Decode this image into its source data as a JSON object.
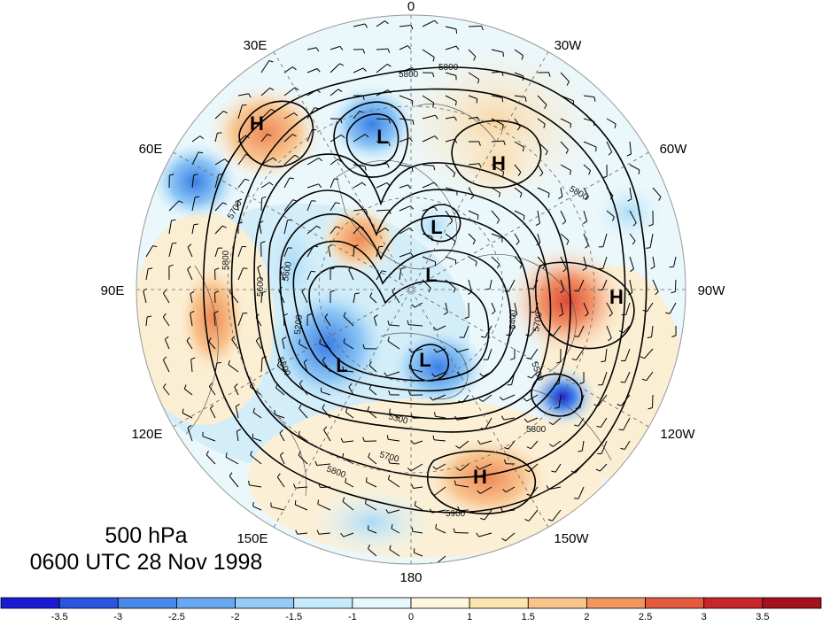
{
  "map": {
    "level": "500 hPa",
    "valid_time": "0600 UTC 28 Nov 1998",
    "longitude_labels": {
      "top": "0",
      "top_left": "30E",
      "top_right": "30W",
      "upper_left": "60E",
      "upper_right": "60W",
      "left": "90E",
      "right": "90W",
      "lower_left": "120E",
      "lower_right": "120W",
      "bottom_left": "150E",
      "bottom_right": "150W",
      "bottom": "180"
    },
    "contour_labels": [
      "5800",
      "5800",
      "5800",
      "5700",
      "5800",
      "5600",
      "5600",
      "5200",
      "5400",
      "5700",
      "5600",
      "5500",
      "5300",
      "5700",
      "5800",
      "5800",
      "5900"
    ],
    "pressure_systems": [
      {
        "type": "H",
        "near": "30E-60E"
      },
      {
        "type": "L",
        "near": "30E-0 upper"
      },
      {
        "type": "H",
        "near": "30W-60W"
      },
      {
        "type": "L",
        "near": "pole, Greenland"
      },
      {
        "type": "L",
        "near": "pole"
      },
      {
        "type": "H",
        "near": "90W"
      },
      {
        "type": "L",
        "near": "90E-120E"
      },
      {
        "type": "L",
        "near": "150W-180"
      },
      {
        "type": "H",
        "near": "150W"
      }
    ],
    "land_color": "#ffffff",
    "contour_color": "#000000"
  },
  "colorbar": {
    "labels": [
      "-3.5",
      "-3",
      "-2.5",
      "-2",
      "-1.5",
      "-1",
      "0",
      "1",
      "1.5",
      "2",
      "2.5",
      "3",
      "3.5"
    ],
    "colors": [
      "#1a1ad6",
      "#2a55e0",
      "#4a87ea",
      "#69a9f2",
      "#94ccf6",
      "#c6ecfb",
      "#e6f8fd",
      "#fdf7e0",
      "#fbe6b0",
      "#f8c48a",
      "#f1975e",
      "#e55a3c",
      "#c8252b",
      "#a5101e"
    ]
  }
}
